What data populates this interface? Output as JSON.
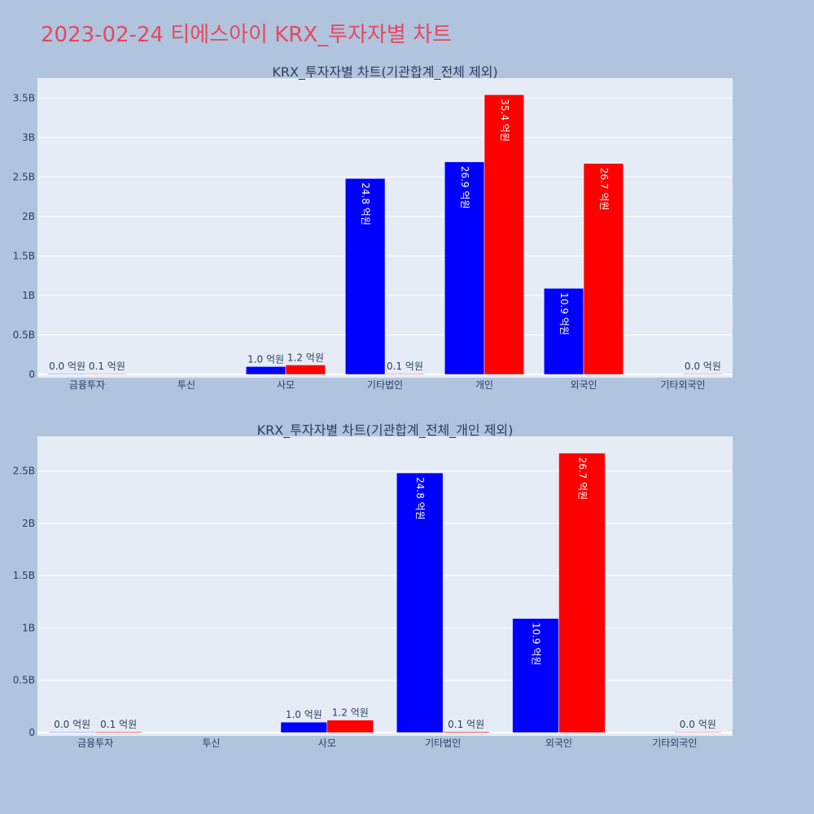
{
  "page": {
    "title": "2023-02-24 티에스아이 KRX_투자자별 차트"
  },
  "colors": {
    "background": "#b0c4de",
    "plot_bg": "#e5ecf6",
    "grid": "#ffffff",
    "title": "#e8475f",
    "text": "#2a3f5f",
    "series_a": "#0000ff",
    "series_b": "#ff0000"
  },
  "chart_data": [
    {
      "type": "bar",
      "title": "KRX_투자자별 차트(기관합계_전체 제외)",
      "categories": [
        "금융투자",
        "투신",
        "사모",
        "기타법인",
        "개인",
        "외국인",
        "기타외국인"
      ],
      "series": [
        {
          "color": "#0000ff",
          "values": [
            0.002,
            null,
            0.1,
            2.48,
            2.69,
            1.09,
            null
          ],
          "labels": [
            "0.0 억원",
            "",
            "1.0 억원",
            "24.8 억원",
            "26.9 억원",
            "10.9 억원",
            ""
          ]
        },
        {
          "color": "#ff0000",
          "values": [
            0.008,
            null,
            0.12,
            0.009,
            3.54,
            2.67,
            0.002
          ],
          "labels": [
            "0.1 억원",
            "",
            "1.2 억원",
            "0.1 억원",
            "35.4 억원",
            "26.7 억원",
            "0.0 억원"
          ]
        }
      ],
      "yunit": "B",
      "ylim": [
        0,
        3.75
      ],
      "yticks": [
        0,
        0.5,
        1,
        1.5,
        2,
        2.5,
        3,
        3.5
      ],
      "ytick_labels": [
        "0",
        "0.5B",
        "1B",
        "1.5B",
        "2B",
        "2.5B",
        "3B",
        "3.5B"
      ],
      "grid": true
    },
    {
      "type": "bar",
      "title": "KRX_투자자별 차트(기관합계_전체_개인 제외)",
      "categories": [
        "금융투자",
        "투신",
        "사모",
        "기타법인",
        "외국인",
        "기타외국인"
      ],
      "series": [
        {
          "color": "#0000ff",
          "values": [
            0.002,
            null,
            0.1,
            2.48,
            1.09,
            null
          ],
          "labels": [
            "0.0 억원",
            "",
            "1.0 억원",
            "24.8 억원",
            "10.9 억원",
            ""
          ]
        },
        {
          "color": "#ff0000",
          "values": [
            0.008,
            null,
            0.12,
            0.009,
            2.67,
            0.002
          ],
          "labels": [
            "0.1 억원",
            "",
            "1.2 억원",
            "0.1 억원",
            "26.7 억원",
            "0.0 억원"
          ]
        }
      ],
      "yunit": "B",
      "ylim": [
        0,
        2.83
      ],
      "yticks": [
        0,
        0.5,
        1,
        1.5,
        2,
        2.5
      ],
      "ytick_labels": [
        "0",
        "0.5B",
        "1B",
        "1.5B",
        "2B",
        "2.5B"
      ],
      "grid": true
    }
  ]
}
